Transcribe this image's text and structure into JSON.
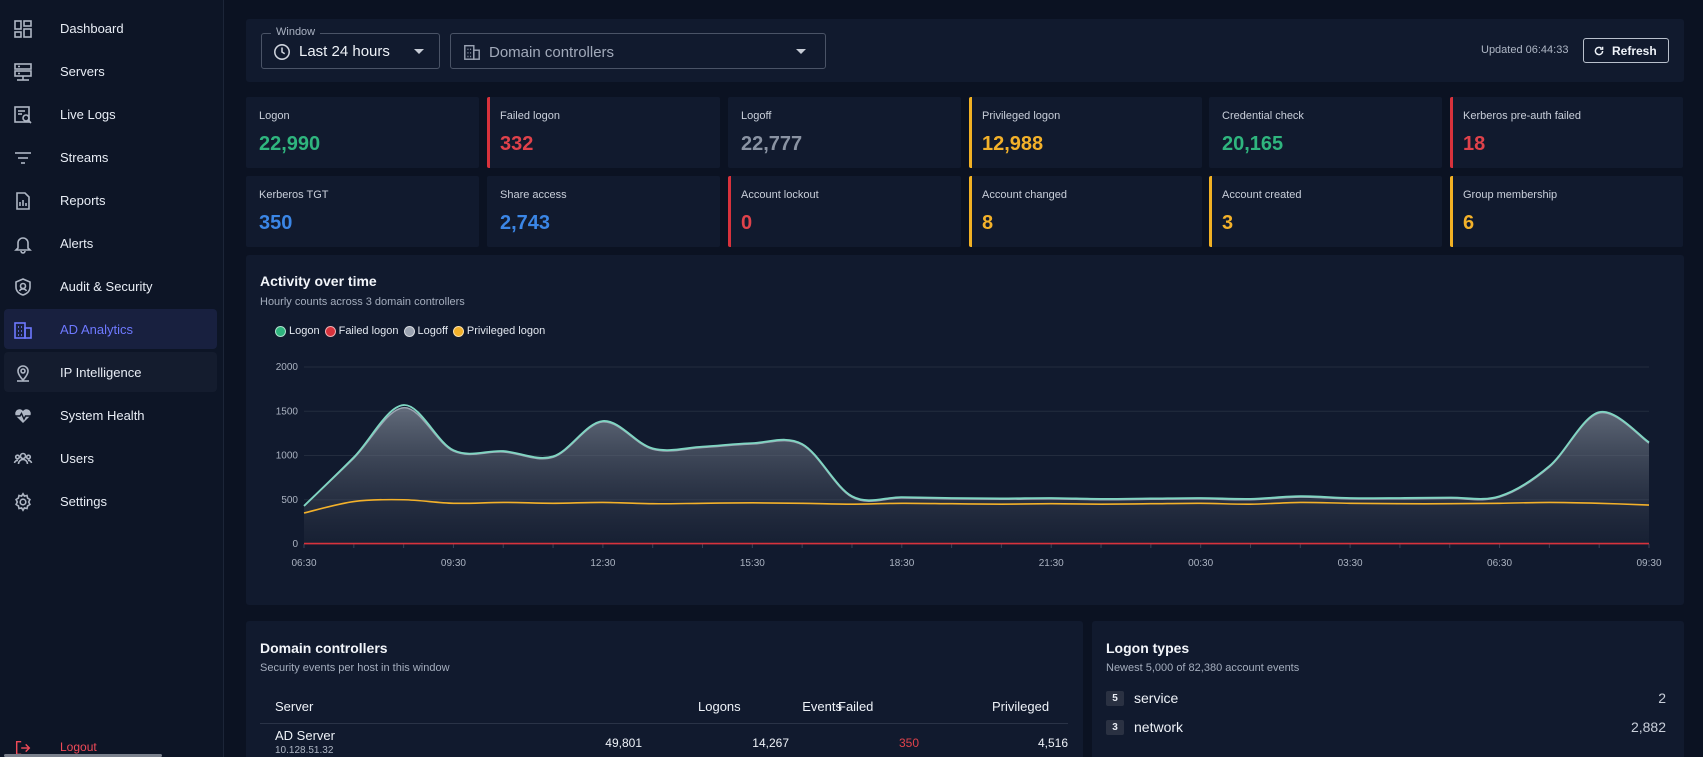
{
  "sidebar": {
    "items": [
      {
        "label": "Dashboard",
        "icon": "dashboard-icon"
      },
      {
        "label": "Servers",
        "icon": "servers-icon"
      },
      {
        "label": "Live Logs",
        "icon": "live-logs-icon"
      },
      {
        "label": "Streams",
        "icon": "streams-icon"
      },
      {
        "label": "Reports",
        "icon": "reports-icon"
      },
      {
        "label": "Alerts",
        "icon": "bell-icon"
      },
      {
        "label": "Audit & Security",
        "icon": "shield-icon"
      },
      {
        "label": "AD Analytics",
        "icon": "building-icon",
        "active": true
      },
      {
        "label": "IP Intelligence",
        "icon": "map-pin-icon"
      },
      {
        "label": "System Health",
        "icon": "heart-pulse-icon"
      },
      {
        "label": "Users",
        "icon": "users-icon"
      },
      {
        "label": "Settings",
        "icon": "gear-icon"
      }
    ],
    "logout_label": "Logout"
  },
  "toolbar": {
    "window_legend": "Window",
    "window_value": "Last 24 hours",
    "dc_value": "Domain controllers",
    "updated": "Updated 06:44:33",
    "refresh_label": "Refresh"
  },
  "stats": [
    {
      "label": "Logon",
      "value": "22,990",
      "color": "#2fb57e"
    },
    {
      "label": "Failed logon",
      "value": "332",
      "color": "#e0424b"
    },
    {
      "label": "Logoff",
      "value": "22,777",
      "color": "#8a93a3"
    },
    {
      "label": "Privileged logon",
      "value": "12,988",
      "color": "#f3b12a"
    },
    {
      "label": "Credential check",
      "value": "20,165",
      "color": "#2fb57e"
    },
    {
      "label": "Kerberos pre-auth failed",
      "value": "18",
      "color": "#e0424b"
    },
    {
      "label": "Kerberos TGT",
      "value": "350",
      "color": "#3b86e6"
    },
    {
      "label": "Share access",
      "value": "2,743",
      "color": "#3b86e6"
    },
    {
      "label": "Account lockout",
      "value": "0",
      "color": "#e0424b"
    },
    {
      "label": "Account changed",
      "value": "8",
      "color": "#f3b12a"
    },
    {
      "label": "Account created",
      "value": "3",
      "color": "#f3b12a"
    },
    {
      "label": "Group membership",
      "value": "6",
      "color": "#f3b12a"
    }
  ],
  "activity": {
    "title": "Activity over time",
    "subtitle": "Hourly counts across 3 domain controllers"
  },
  "chart_data": {
    "type": "area",
    "x": [
      "06:30",
      "07:30",
      "08:30",
      "09:30",
      "10:30",
      "11:30",
      "12:30",
      "13:30",
      "14:30",
      "15:30",
      "16:30",
      "17:30",
      "18:30",
      "19:30",
      "20:30",
      "21:30",
      "22:30",
      "23:30",
      "00:30",
      "01:30",
      "02:30",
      "03:30",
      "04:30",
      "05:30",
      "06:30",
      "07:30",
      "08:30",
      "09:30"
    ],
    "xticks": [
      "06:30",
      "09:30",
      "12:30",
      "15:30",
      "18:30",
      "21:30",
      "00:30",
      "03:30",
      "06:30",
      "09:30"
    ],
    "yticks": [
      0,
      500,
      1000,
      1500,
      2000
    ],
    "ylim": [
      0,
      2000
    ],
    "grid": true,
    "series": [
      {
        "name": "Logon",
        "color": "#2fb57e",
        "values": [
          430,
          980,
          1570,
          1060,
          1050,
          990,
          1390,
          1080,
          1100,
          1140,
          1130,
          540,
          530,
          520,
          515,
          520,
          510,
          515,
          520,
          510,
          540,
          520,
          520,
          525,
          540,
          880,
          1490,
          1150
        ]
      },
      {
        "name": "Failed logon",
        "color": "#d8323c",
        "values": [
          5,
          5,
          5,
          5,
          5,
          5,
          5,
          5,
          5,
          5,
          5,
          5,
          5,
          5,
          5,
          5,
          5,
          5,
          5,
          5,
          5,
          5,
          5,
          5,
          5,
          5,
          5,
          5
        ]
      },
      {
        "name": "Logoff",
        "color": "#9ba3b1",
        "values": [
          430,
          970,
          1540,
          1050,
          1040,
          980,
          1380,
          1070,
          1090,
          1130,
          1120,
          530,
          520,
          510,
          505,
          510,
          500,
          505,
          510,
          500,
          530,
          510,
          510,
          515,
          530,
          870,
          1480,
          1140
        ]
      },
      {
        "name": "Privileged logon",
        "color": "#f3b12a",
        "values": [
          350,
          480,
          500,
          460,
          470,
          460,
          470,
          455,
          460,
          465,
          460,
          450,
          460,
          455,
          450,
          455,
          450,
          455,
          460,
          450,
          470,
          460,
          455,
          455,
          460,
          470,
          460,
          440
        ]
      }
    ]
  },
  "dc_table": {
    "title": "Domain controllers",
    "subtitle": "Security events per host in this window",
    "columns": [
      "Server",
      "Events",
      "Logons",
      "Failed",
      "Privileged"
    ],
    "rows": [
      {
        "server": "AD Server",
        "ip": "10.128.51.32",
        "events": "49,801",
        "logons": "14,267",
        "failed": "350",
        "privileged": "4,516"
      }
    ]
  },
  "logon_types": {
    "title": "Logon types",
    "subtitle": "Newest 5,000 of 82,380 account events",
    "rows": [
      {
        "badge": "5",
        "name": "service",
        "count": "2"
      },
      {
        "badge": "3",
        "name": "network",
        "count": "2,882"
      }
    ]
  }
}
